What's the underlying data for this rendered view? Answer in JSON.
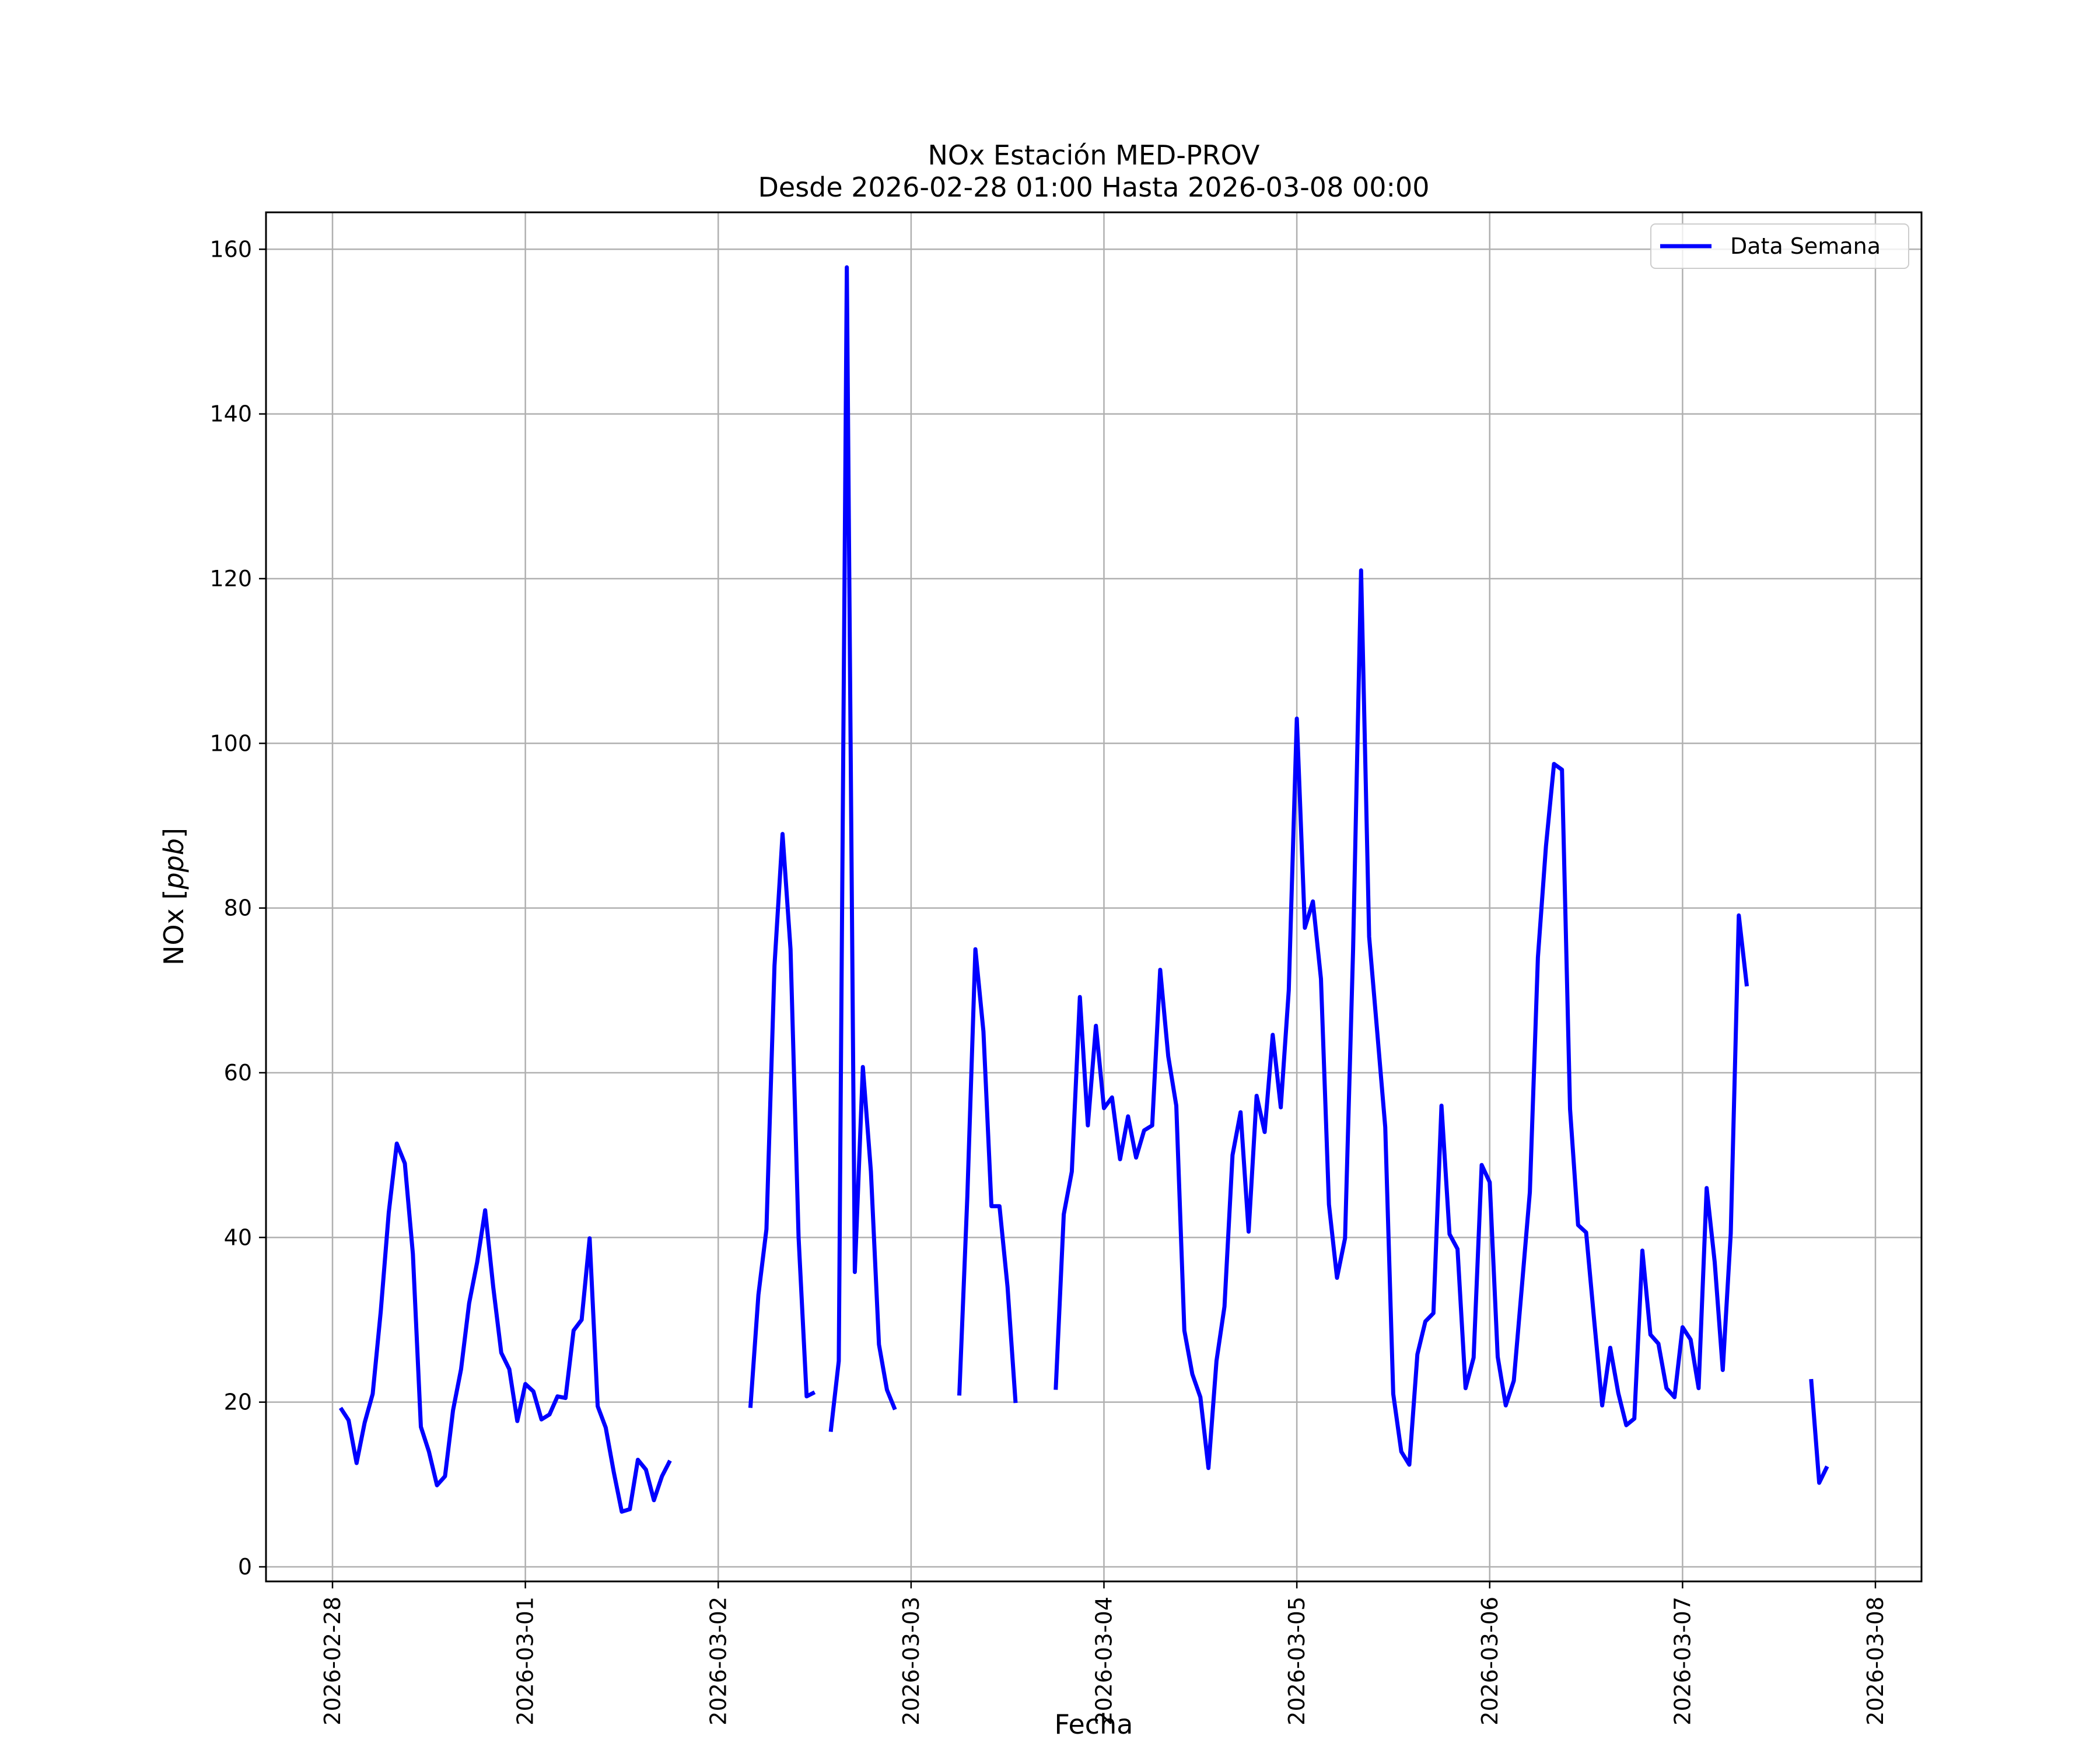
{
  "chart_data": {
    "type": "line",
    "title": "NOx Estación MED-PROV",
    "subtitle": "Desde 2026-02-28 01:00 Hasta 2026-03-08 00:00",
    "xlabel": "Fecha",
    "ylabel": "NOx [ppb]",
    "ylabel_plain": "NOx [",
    "ylabel_unit": "ppb",
    "ylabel_close": "]",
    "ylim": [
      0,
      160
    ],
    "xlim": [
      "2026-02-28 00:00",
      "2026-03-08 00:00"
    ],
    "x_ticks": [
      "2026-02-28",
      "2026-03-01",
      "2026-03-02",
      "2026-03-03",
      "2026-03-04",
      "2026-03-05",
      "2026-03-06",
      "2026-03-07",
      "2026-03-08"
    ],
    "y_ticks": [
      "0",
      "20",
      "40",
      "60",
      "80",
      "100",
      "120",
      "140",
      "160"
    ],
    "grid": true,
    "legend_position": "top-right",
    "colors": {
      "series": "#0000ff",
      "grid": "#b0b0b0",
      "axes": "#000000"
    },
    "series": [
      {
        "name": "Data Semana",
        "segments": [
          [
            [
              "2026-02-28 01:00",
              19.3
            ],
            [
              "2026-02-28 02:00",
              17.8
            ],
            [
              "2026-02-28 03:00",
              12.6
            ],
            [
              "2026-02-28 04:00",
              17.5
            ],
            [
              "2026-02-28 05:00",
              21.0
            ],
            [
              "2026-02-28 06:00",
              31.0
            ],
            [
              "2026-02-28 07:00",
              43.0
            ],
            [
              "2026-02-28 08:00",
              51.4
            ],
            [
              "2026-02-28 09:00",
              49.0
            ],
            [
              "2026-02-28 10:00",
              38.0
            ],
            [
              "2026-02-28 11:00",
              17.0
            ],
            [
              "2026-02-28 12:00",
              14.0
            ],
            [
              "2026-02-28 13:00",
              9.9
            ],
            [
              "2026-02-28 14:00",
              11.0
            ],
            [
              "2026-02-28 15:00",
              19.0
            ],
            [
              "2026-02-28 16:00",
              24.0
            ],
            [
              "2026-02-28 17:00",
              32.0
            ],
            [
              "2026-02-28 18:00",
              37.0
            ],
            [
              "2026-02-28 19:00",
              43.3
            ],
            [
              "2026-02-28 20:00",
              34.0
            ],
            [
              "2026-02-28 21:00",
              26.0
            ],
            [
              "2026-02-28 22:00",
              24.0
            ],
            [
              "2026-02-28 23:00",
              17.7
            ],
            [
              "2026-03-01 00:00",
              22.2
            ],
            [
              "2026-03-01 01:00",
              21.3
            ],
            [
              "2026-03-01 02:00",
              17.9
            ],
            [
              "2026-03-01 03:00",
              18.5
            ],
            [
              "2026-03-01 04:00",
              20.7
            ],
            [
              "2026-03-01 05:00",
              20.5
            ],
            [
              "2026-03-01 06:00",
              28.7
            ],
            [
              "2026-03-01 07:00",
              30.0
            ],
            [
              "2026-03-01 08:00",
              39.9
            ],
            [
              "2026-03-01 09:00",
              19.5
            ],
            [
              "2026-03-01 10:00",
              16.9
            ],
            [
              "2026-03-01 11:00",
              11.5
            ],
            [
              "2026-03-01 12:00",
              6.7
            ],
            [
              "2026-03-01 13:00",
              7.0
            ],
            [
              "2026-03-01 14:00",
              13.0
            ],
            [
              "2026-03-01 15:00",
              11.8
            ],
            [
              "2026-03-01 16:00",
              8.1
            ],
            [
              "2026-03-01 17:00",
              11.0
            ],
            [
              "2026-03-01 18:00",
              12.9
            ]
          ],
          [
            [
              "2026-03-02 04:00",
              19.3
            ],
            [
              "2026-03-02 05:00",
              33.0
            ],
            [
              "2026-03-02 06:00",
              41.0
            ],
            [
              "2026-03-02 07:00",
              73.0
            ],
            [
              "2026-03-02 08:00",
              89.0
            ],
            [
              "2026-03-02 09:00",
              75.0
            ],
            [
              "2026-03-02 10:00",
              40.0
            ],
            [
              "2026-03-02 11:00",
              20.7
            ],
            [
              "2026-03-02 12:00",
              21.2
            ]
          ],
          [
            [
              "2026-03-02 14:00",
              16.4
            ],
            [
              "2026-03-02 15:00",
              25.0
            ],
            [
              "2026-03-02 16:00",
              157.8
            ],
            [
              "2026-03-02 17:00",
              35.8
            ],
            [
              "2026-03-02 18:00",
              60.7
            ],
            [
              "2026-03-02 19:00",
              48.0
            ],
            [
              "2026-03-02 20:00",
              27.0
            ],
            [
              "2026-03-02 21:00",
              21.5
            ],
            [
              "2026-03-02 22:00",
              19.1
            ]
          ],
          [
            [
              "2026-03-03 06:00",
              20.8
            ],
            [
              "2026-03-03 07:00",
              45.0
            ],
            [
              "2026-03-03 08:00",
              75.0
            ],
            [
              "2026-03-03 09:00",
              65.0
            ],
            [
              "2026-03-03 10:00",
              43.8
            ],
            [
              "2026-03-03 11:00",
              43.8
            ],
            [
              "2026-03-03 12:00",
              34.0
            ],
            [
              "2026-03-03 13:00",
              19.9
            ]
          ],
          [
            [
              "2026-03-03 18:00",
              21.5
            ],
            [
              "2026-03-03 19:00",
              42.8
            ],
            [
              "2026-03-03 20:00",
              48.0
            ],
            [
              "2026-03-03 21:00",
              69.2
            ],
            [
              "2026-03-03 22:00",
              53.6
            ],
            [
              "2026-03-03 23:00",
              65.7
            ],
            [
              "2026-03-04 00:00",
              55.7
            ],
            [
              "2026-03-04 01:00",
              57.0
            ],
            [
              "2026-03-04 02:00",
              49.5
            ],
            [
              "2026-03-04 03:00",
              54.7
            ],
            [
              "2026-03-04 04:00",
              49.7
            ],
            [
              "2026-03-04 05:00",
              53.0
            ],
            [
              "2026-03-04 06:00",
              53.6
            ],
            [
              "2026-03-04 07:00",
              72.5
            ],
            [
              "2026-03-04 08:00",
              62.0
            ],
            [
              "2026-03-04 09:00",
              56.0
            ],
            [
              "2026-03-04 10:00",
              28.7
            ],
            [
              "2026-03-04 11:00",
              23.4
            ],
            [
              "2026-03-04 12:00",
              20.6
            ],
            [
              "2026-03-04 13:00",
              12.0
            ],
            [
              "2026-03-04 14:00",
              25.0
            ],
            [
              "2026-03-04 15:00",
              31.6
            ],
            [
              "2026-03-04 16:00",
              50.0
            ],
            [
              "2026-03-04 17:00",
              55.2
            ],
            [
              "2026-03-04 18:00",
              40.7
            ],
            [
              "2026-03-04 19:00",
              57.2
            ],
            [
              "2026-03-04 20:00",
              52.8
            ],
            [
              "2026-03-04 21:00",
              64.6
            ],
            [
              "2026-03-04 22:00",
              55.8
            ],
            [
              "2026-03-04 23:00",
              70.0
            ],
            [
              "2026-03-05 00:00",
              103.0
            ],
            [
              "2026-03-05 01:00",
              77.6
            ],
            [
              "2026-03-05 02:00",
              80.8
            ],
            [
              "2026-03-05 03:00",
              71.4
            ],
            [
              "2026-03-05 04:00",
              44.0
            ],
            [
              "2026-03-05 05:00",
              35.1
            ],
            [
              "2026-03-05 06:00",
              39.9
            ],
            [
              "2026-03-05 07:00",
              75.0
            ],
            [
              "2026-03-05 08:00",
              121.0
            ],
            [
              "2026-03-05 09:00",
              76.5
            ],
            [
              "2026-03-05 10:00",
              65.0
            ],
            [
              "2026-03-05 11:00",
              53.4
            ],
            [
              "2026-03-05 12:00",
              21.0
            ],
            [
              "2026-03-05 13:00",
              14.0
            ],
            [
              "2026-03-05 14:00",
              12.4
            ],
            [
              "2026-03-05 15:00",
              25.8
            ],
            [
              "2026-03-05 16:00",
              29.8
            ],
            [
              "2026-03-05 17:00",
              30.8
            ],
            [
              "2026-03-05 18:00",
              56.0
            ],
            [
              "2026-03-05 19:00",
              40.4
            ],
            [
              "2026-03-05 20:00",
              38.6
            ],
            [
              "2026-03-05 21:00",
              21.7
            ],
            [
              "2026-03-05 22:00",
              25.4
            ],
            [
              "2026-03-05 23:00",
              48.8
            ],
            [
              "2026-03-06 00:00",
              46.7
            ],
            [
              "2026-03-06 01:00",
              25.5
            ],
            [
              "2026-03-06 02:00",
              19.6
            ],
            [
              "2026-03-06 03:00",
              22.6
            ],
            [
              "2026-03-06 04:00",
              34.0
            ],
            [
              "2026-03-06 05:00",
              45.5
            ],
            [
              "2026-03-06 06:00",
              74.0
            ],
            [
              "2026-03-06 07:00",
              87.5
            ],
            [
              "2026-03-06 08:00",
              97.5
            ],
            [
              "2026-03-06 09:00",
              96.8
            ],
            [
              "2026-03-06 10:00",
              55.6
            ],
            [
              "2026-03-06 11:00",
              41.5
            ],
            [
              "2026-03-06 12:00",
              40.6
            ],
            [
              "2026-03-06 13:00",
              30.0
            ],
            [
              "2026-03-06 14:00",
              19.6
            ],
            [
              "2026-03-06 15:00",
              26.6
            ],
            [
              "2026-03-06 16:00",
              21.1
            ],
            [
              "2026-03-06 17:00",
              17.2
            ],
            [
              "2026-03-06 18:00",
              18.0
            ],
            [
              "2026-03-06 19:00",
              38.4
            ],
            [
              "2026-03-06 20:00",
              28.2
            ],
            [
              "2026-03-06 21:00",
              27.1
            ],
            [
              "2026-03-06 22:00",
              21.7
            ],
            [
              "2026-03-06 23:00",
              20.6
            ],
            [
              "2026-03-07 00:00",
              29.1
            ],
            [
              "2026-03-07 01:00",
              27.6
            ],
            [
              "2026-03-07 02:00",
              21.7
            ],
            [
              "2026-03-07 03:00",
              46.0
            ],
            [
              "2026-03-07 04:00",
              37.0
            ],
            [
              "2026-03-07 05:00",
              23.9
            ],
            [
              "2026-03-07 06:00",
              40.5
            ],
            [
              "2026-03-07 07:00",
              79.1
            ],
            [
              "2026-03-07 08:00",
              70.5
            ]
          ],
          [
            [
              "2026-03-07 16:00",
              22.8
            ],
            [
              "2026-03-07 17:00",
              10.2
            ],
            [
              "2026-03-07 18:00",
              12.2
            ]
          ]
        ]
      }
    ]
  }
}
